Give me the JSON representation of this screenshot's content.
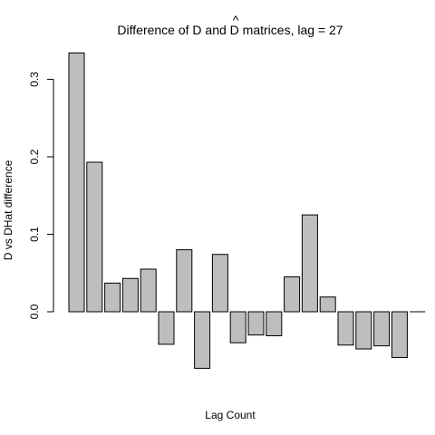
{
  "chart_data": {
    "type": "bar",
    "title": "Difference of D and D matrices, lag = 27",
    "title_prefix": "Difference of D and ",
    "title_hat_letter": "D",
    "title_hat_mark": "^",
    "title_suffix": " matrices, lag = 27",
    "xlabel": "Lag Count",
    "ylabel": "D vs DHat difference",
    "ylim": [
      -0.075,
      0.335
    ],
    "yticks": [
      0.0,
      0.1,
      0.2,
      0.3
    ],
    "ytick_labels": [
      "0.0",
      "0.1",
      "0.2",
      "0.3"
    ],
    "values": [
      0.334,
      0.193,
      0.037,
      0.043,
      0.055,
      -0.042,
      0.08,
      -0.073,
      0.074,
      -0.04,
      -0.03,
      -0.031,
      0.045,
      0.125,
      0.019,
      -0.043,
      -0.048,
      -0.044,
      -0.059,
      0.0
    ],
    "bar_color": "#bebebe",
    "grid": false,
    "legend": "none"
  }
}
